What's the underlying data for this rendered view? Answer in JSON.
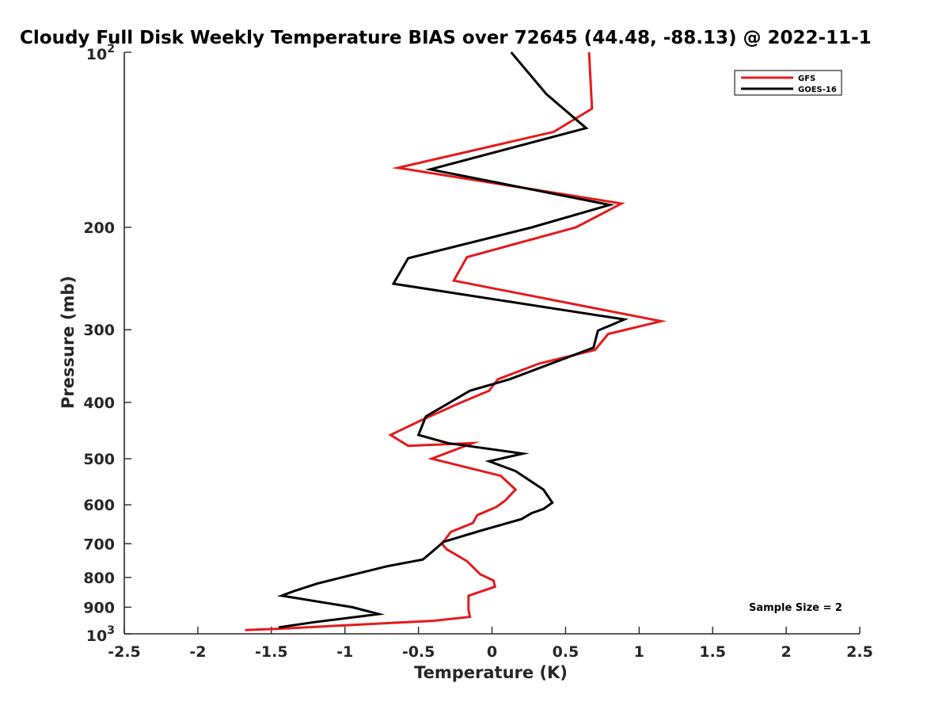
{
  "chart_data": {
    "type": "line",
    "title": "Cloudy Full Disk Weekly Temperature BIAS over 72645 (44.48, -88.13) @ 2022-11-1",
    "xlabel": "Temperature (K)",
    "ylabel": "Pressure (mb)",
    "xlim": [
      -2.5,
      2.5
    ],
    "ylim": [
      100,
      1000
    ],
    "y_scale": "log",
    "y_reversed": true,
    "x_ticks": [
      -2.5,
      -2,
      -1.5,
      -1,
      -0.5,
      0,
      0.5,
      1,
      1.5,
      2,
      2.5
    ],
    "x_tick_labels": [
      "-2.5",
      "-2",
      "-1.5",
      "-1",
      "-0.5",
      "0",
      "0.5",
      "1",
      "1.5",
      "2",
      "2.5"
    ],
    "y_ticks": [
      200,
      300,
      400,
      500,
      600,
      700,
      800,
      900
    ],
    "y_tick_labels": [
      "200",
      "300",
      "400",
      "500",
      "600",
      "700",
      "800",
      "900"
    ],
    "y_top_label": {
      "base": "10",
      "exp": "2"
    },
    "y_bottom_label": {
      "base": "10",
      "exp": "3"
    },
    "grid": false,
    "legend": {
      "position": "top-right",
      "entries": [
        "GFS",
        "GOES-16"
      ]
    },
    "annotation": "Sample Size = 2",
    "series": [
      {
        "name": "GFS",
        "color": "#e41a1c",
        "points": [
          [
            0.66,
            100
          ],
          [
            0.68,
            125
          ],
          [
            0.42,
            137
          ],
          [
            -0.64,
            158
          ],
          [
            0.88,
            182
          ],
          [
            0.57,
            200
          ],
          [
            -0.17,
            225
          ],
          [
            -0.26,
            247
          ],
          [
            1.15,
            290
          ],
          [
            0.79,
            305
          ],
          [
            0.7,
            325
          ],
          [
            0.32,
            343
          ],
          [
            0.04,
            365
          ],
          [
            -0.02,
            382
          ],
          [
            -0.23,
            402
          ],
          [
            -0.47,
            428
          ],
          [
            -0.69,
            455
          ],
          [
            -0.57,
            475
          ],
          [
            -0.13,
            470
          ],
          [
            -0.41,
            500
          ],
          [
            0.06,
            535
          ],
          [
            0.16,
            565
          ],
          [
            0.09,
            590
          ],
          [
            0.03,
            605
          ],
          [
            -0.1,
            625
          ],
          [
            -0.13,
            645
          ],
          [
            -0.28,
            668
          ],
          [
            -0.34,
            700
          ],
          [
            -0.31,
            715
          ],
          [
            -0.17,
            750
          ],
          [
            -0.08,
            790
          ],
          [
            0.01,
            810
          ],
          [
            0.02,
            830
          ],
          [
            -0.16,
            860
          ],
          [
            -0.16,
            910
          ],
          [
            -0.15,
            935
          ],
          [
            -0.4,
            950
          ],
          [
            -1.45,
            980
          ],
          [
            -1.68,
            985
          ]
        ]
      },
      {
        "name": "GOES-16",
        "color": "#000000",
        "points": [
          [
            0.13,
            100
          ],
          [
            0.37,
            118
          ],
          [
            0.64,
            135
          ],
          [
            -0.42,
            159
          ],
          [
            0.8,
            183
          ],
          [
            0.27,
            200
          ],
          [
            -0.57,
            226
          ],
          [
            -0.67,
            250
          ],
          [
            0.9,
            288
          ],
          [
            0.72,
            301
          ],
          [
            0.69,
            322
          ],
          [
            0.12,
            365
          ],
          [
            -0.15,
            382
          ],
          [
            -0.45,
            423
          ],
          [
            -0.5,
            455
          ],
          [
            -0.3,
            470
          ],
          [
            0.21,
            490
          ],
          [
            -0.02,
            505
          ],
          [
            0.16,
            525
          ],
          [
            0.35,
            565
          ],
          [
            0.41,
            595
          ],
          [
            0.35,
            610
          ],
          [
            0.27,
            620
          ],
          [
            0.2,
            635
          ],
          [
            -0.08,
            665
          ],
          [
            -0.33,
            695
          ],
          [
            -0.4,
            720
          ],
          [
            -0.47,
            745
          ],
          [
            -0.71,
            765
          ],
          [
            -0.98,
            795
          ],
          [
            -1.19,
            820
          ],
          [
            -1.35,
            845
          ],
          [
            -1.43,
            860
          ],
          [
            -0.95,
            900
          ],
          [
            -0.77,
            925
          ],
          [
            -0.92,
            935
          ],
          [
            -1.21,
            955
          ],
          [
            -1.45,
            975
          ]
        ]
      }
    ]
  }
}
